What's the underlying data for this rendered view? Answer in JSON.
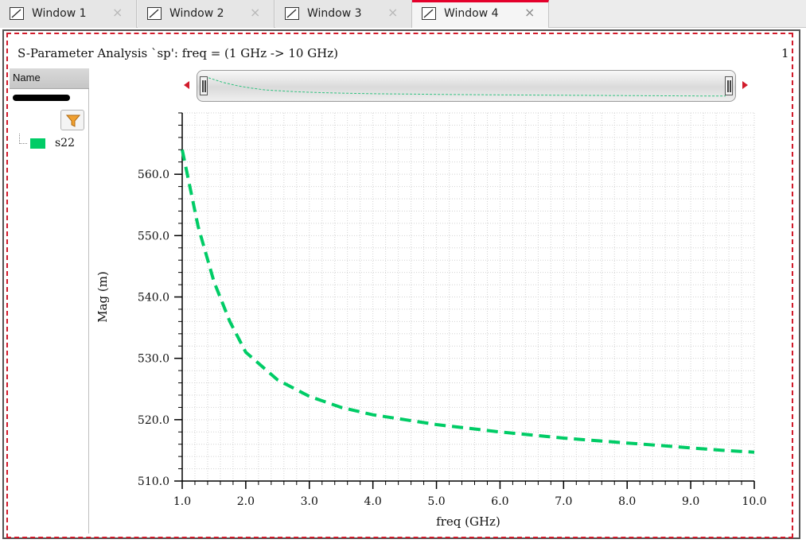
{
  "tabs": [
    {
      "label": "Window 1",
      "active": false
    },
    {
      "label": "Window 2",
      "active": false
    },
    {
      "label": "Window 3",
      "active": false
    },
    {
      "label": "Window 4",
      "active": true
    }
  ],
  "tab_close_glyph": "×",
  "plot": {
    "title": "S-Parameter Analysis `sp': freq = (1 GHz -> 10 GHz)",
    "subwindow_index": "1"
  },
  "legend": {
    "header": "Name",
    "series": [
      {
        "name": "s22",
        "color": "#00cc66"
      }
    ]
  },
  "icons": {
    "tab": "waveform-window-icon",
    "filter": "filter-funnel-icon",
    "overview_left": "scroll-left-arrow-icon",
    "overview_right": "scroll-right-arrow-icon"
  },
  "chart_data": {
    "type": "line",
    "xlabel": "freq (GHz)",
    "ylabel": "Mag (m)",
    "xlim": [
      1.0,
      10.0
    ],
    "ylim": [
      510.0,
      570.0
    ],
    "xticks": [
      "1.0",
      "2.0",
      "3.0",
      "4.0",
      "5.0",
      "6.0",
      "7.0",
      "8.0",
      "9.0",
      "10.0"
    ],
    "yticks": [
      "510.0",
      "520.0",
      "530.0",
      "540.0",
      "550.0",
      "560.0"
    ],
    "grid": true,
    "line_style": "dashed",
    "series": [
      {
        "name": "s22",
        "color": "#00cc66",
        "x": [
          1.0,
          1.25,
          1.5,
          1.75,
          2.0,
          2.5,
          3.0,
          3.5,
          4.0,
          4.5,
          5.0,
          5.5,
          6.0,
          6.5,
          7.0,
          7.5,
          8.0,
          8.5,
          9.0,
          9.5,
          10.0
        ],
        "y": [
          564.0,
          551.5,
          542.5,
          536.0,
          531.0,
          526.5,
          523.8,
          522.0,
          520.8,
          520.0,
          519.2,
          518.6,
          518.0,
          517.5,
          517.0,
          516.6,
          516.2,
          515.8,
          515.4,
          515.0,
          514.7
        ]
      }
    ]
  }
}
